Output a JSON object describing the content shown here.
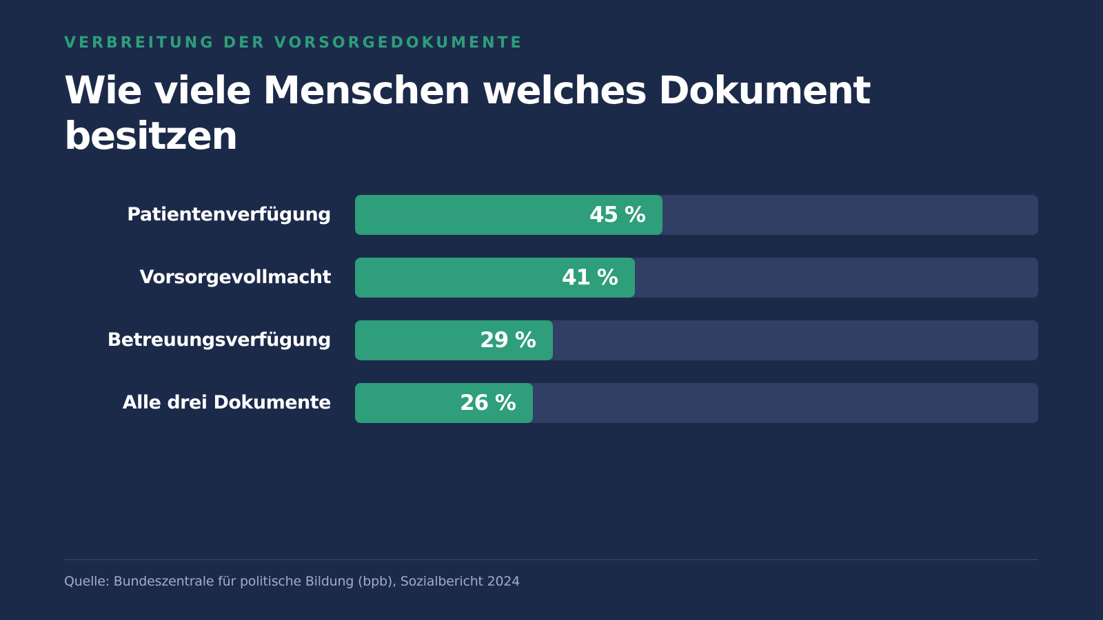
{
  "header": {
    "eyebrow": "VERBREITUNG DER VORSORGEDOKUMENTE",
    "title": "Wie viele Menschen welches Dokument besitzen"
  },
  "chart_data": {
    "type": "bar",
    "orientation": "horizontal",
    "categories": [
      "Patientenverfügung",
      "Vorsorgevollmacht",
      "Betreuungsverfügung",
      "Alle drei Dokumente"
    ],
    "values": [
      45,
      41,
      29,
      26
    ],
    "value_labels": [
      "45 %",
      "41 %",
      "29 %",
      "26 %"
    ],
    "unit": "%",
    "xlim": [
      0,
      100
    ],
    "grid": false,
    "legend": "none",
    "colors": {
      "bar": "#2e9e7b",
      "track": "#303f63"
    }
  },
  "footer": {
    "source": "Quelle: Bundeszentrale für politische Bildung (bpb), Sozialbericht 2024"
  }
}
